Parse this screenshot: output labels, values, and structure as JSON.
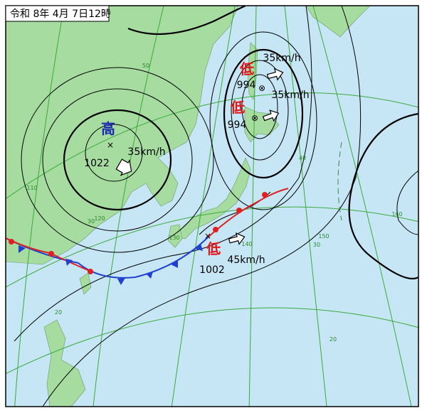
{
  "title": "令和 8年 4月 7日12時",
  "systems": [
    {
      "symbol": "高",
      "pressure": "1022",
      "speed": "35km/h"
    },
    {
      "symbol": "低",
      "pressure": "994",
      "speed": "35km/h"
    },
    {
      "symbol": "低",
      "pressure": "994",
      "speed": "35km/h"
    },
    {
      "symbol": "低",
      "pressure": "1002",
      "speed": "45km/h"
    }
  ],
  "grid_labels": [
    "50",
    "40",
    "30",
    "30",
    "20",
    "20",
    "110",
    "120",
    "130",
    "140",
    "150",
    "160"
  ]
}
